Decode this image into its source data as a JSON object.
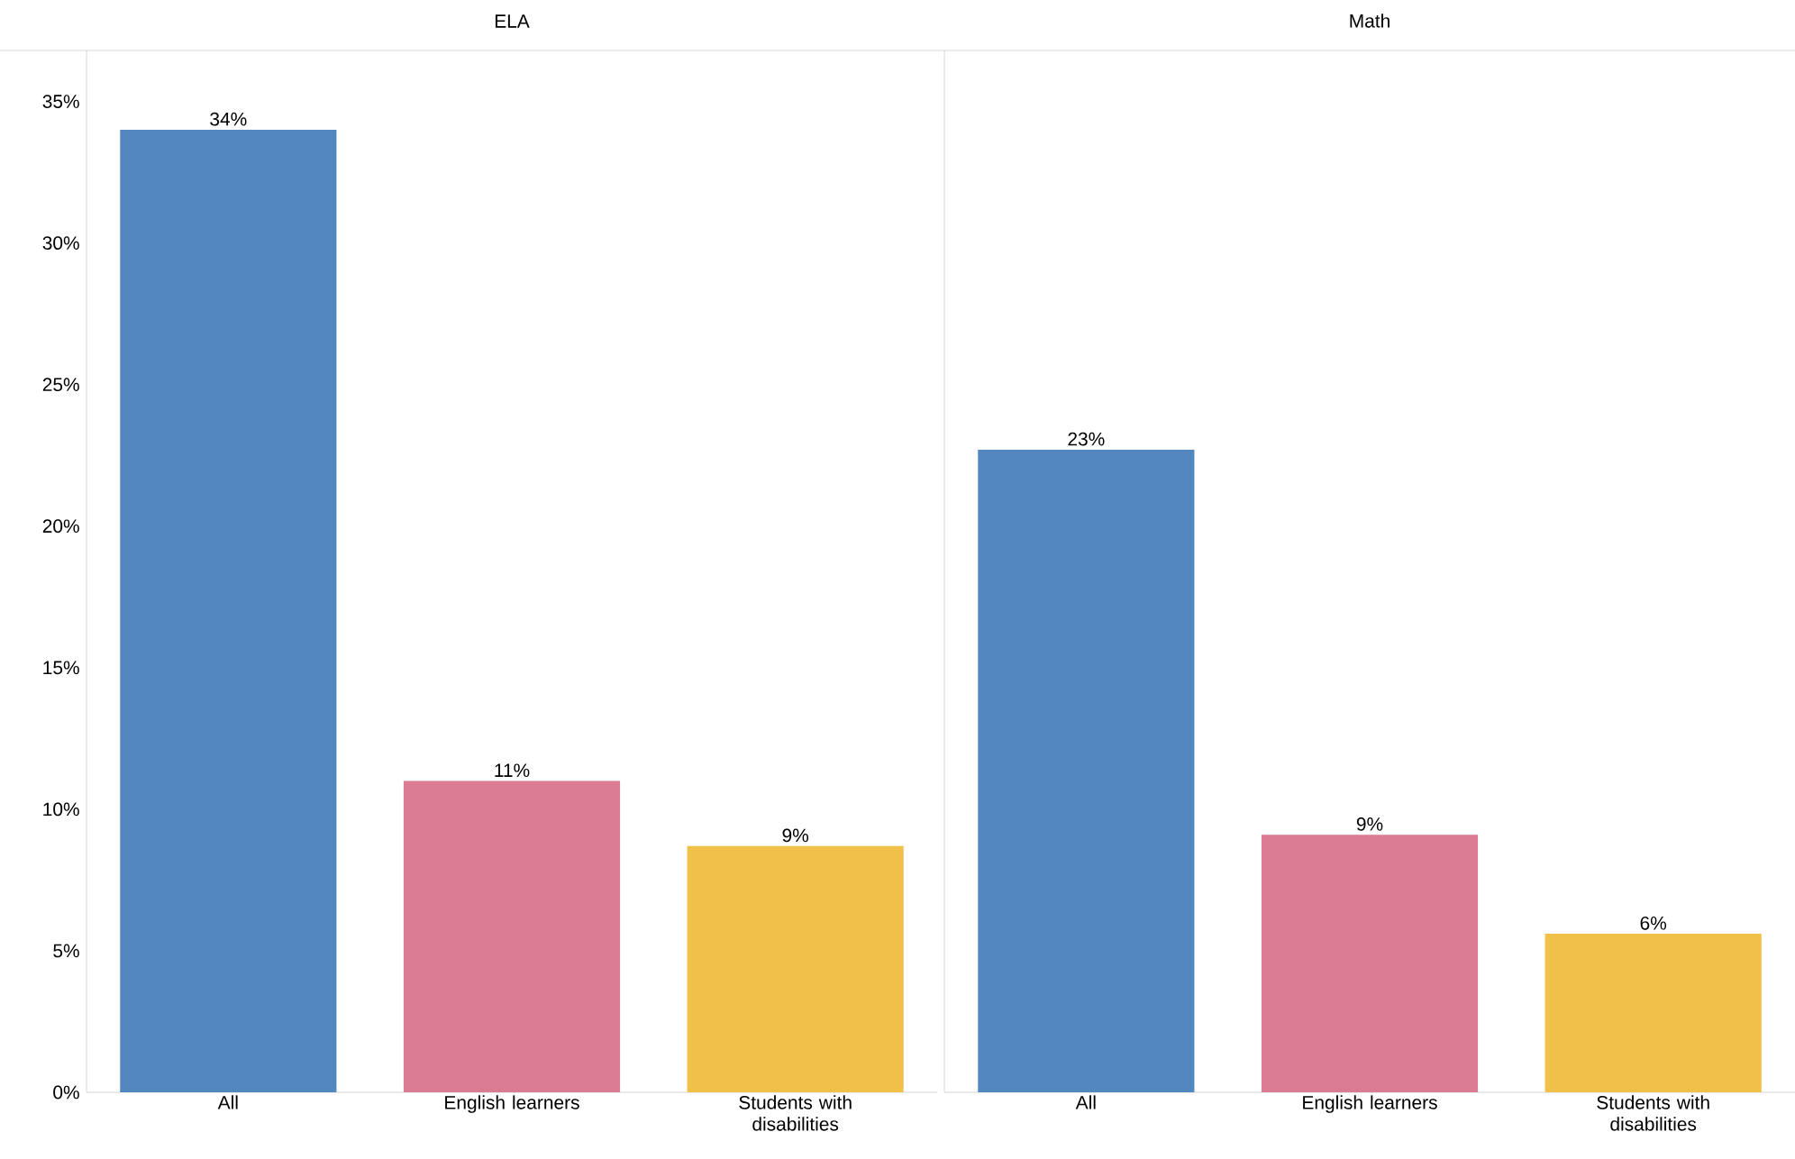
{
  "chart_data": [
    {
      "type": "bar",
      "title": "ELA",
      "categories": [
        "All",
        "English learners",
        "Students with disabilities"
      ],
      "values": [
        34,
        11,
        8.7
      ],
      "colors": [
        "#5387c0",
        "#dc7c93",
        "#f0c048"
      ],
      "value_labels": [
        "34%",
        "11%",
        "9%"
      ],
      "ylim": [
        0,
        36.8
      ],
      "yticks": [
        {
          "value": 0,
          "label": "0%"
        },
        {
          "value": 5,
          "label": "5%"
        },
        {
          "value": 10,
          "label": "10%"
        },
        {
          "value": 15,
          "label": "15%"
        },
        {
          "value": 20,
          "label": "20%"
        },
        {
          "value": 25,
          "label": "25%"
        },
        {
          "value": 30,
          "label": "30%"
        },
        {
          "value": 35,
          "label": "35%"
        }
      ]
    },
    {
      "type": "bar",
      "title": "Math",
      "categories": [
        "All",
        "English learners",
        "Students with disabilities"
      ],
      "values": [
        22.7,
        9.1,
        5.6
      ],
      "colors": [
        "#5387c0",
        "#dc7c93",
        "#f0c048"
      ],
      "value_labels": [
        "23%",
        "9%",
        "6%"
      ],
      "ylim": [
        0,
        36.8
      ],
      "tick_labels": "x"
    }
  ]
}
